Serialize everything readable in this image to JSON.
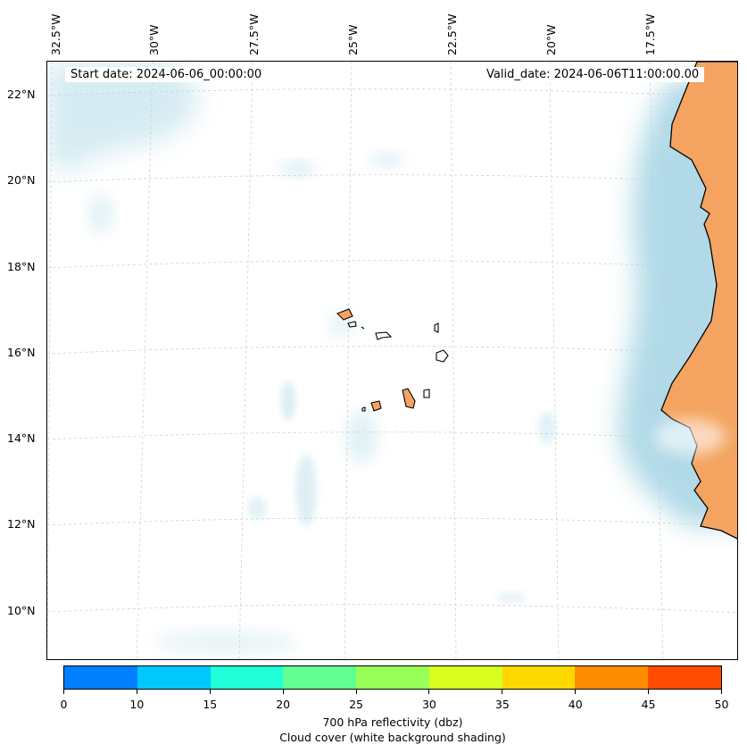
{
  "header": {
    "start_date": "Start date: 2024-06-06_00:00:00",
    "valid_date": "Valid_date: 2024-06-06T11:00:00.00"
  },
  "map": {
    "longitude_labels": [
      "32.5°W",
      "30°W",
      "27.5°W",
      "25°W",
      "22.5°W",
      "20°W",
      "17.5°W"
    ],
    "latitude_labels": [
      "22°N",
      "20°N",
      "18°N",
      "16°N",
      "14°N",
      "12°N",
      "10°N"
    ],
    "land_color": "#f4a460",
    "cloud_color": "#add8e6",
    "coastline_color": "#000000",
    "gridline_color": "#cccccc"
  },
  "colorbar": {
    "tick_labels": [
      "0",
      "10",
      "15",
      "20",
      "25",
      "30",
      "35",
      "40",
      "45",
      "50"
    ],
    "colors": [
      "#0080ff",
      "#00c8ff",
      "#20ffd8",
      "#60ff90",
      "#98ff58",
      "#d8ff20",
      "#ffd800",
      "#ff8c00",
      "#ff4c00"
    ],
    "label": "700 hPa reflectivity (dbz)",
    "sublabel": "Cloud cover (white background shading)"
  }
}
